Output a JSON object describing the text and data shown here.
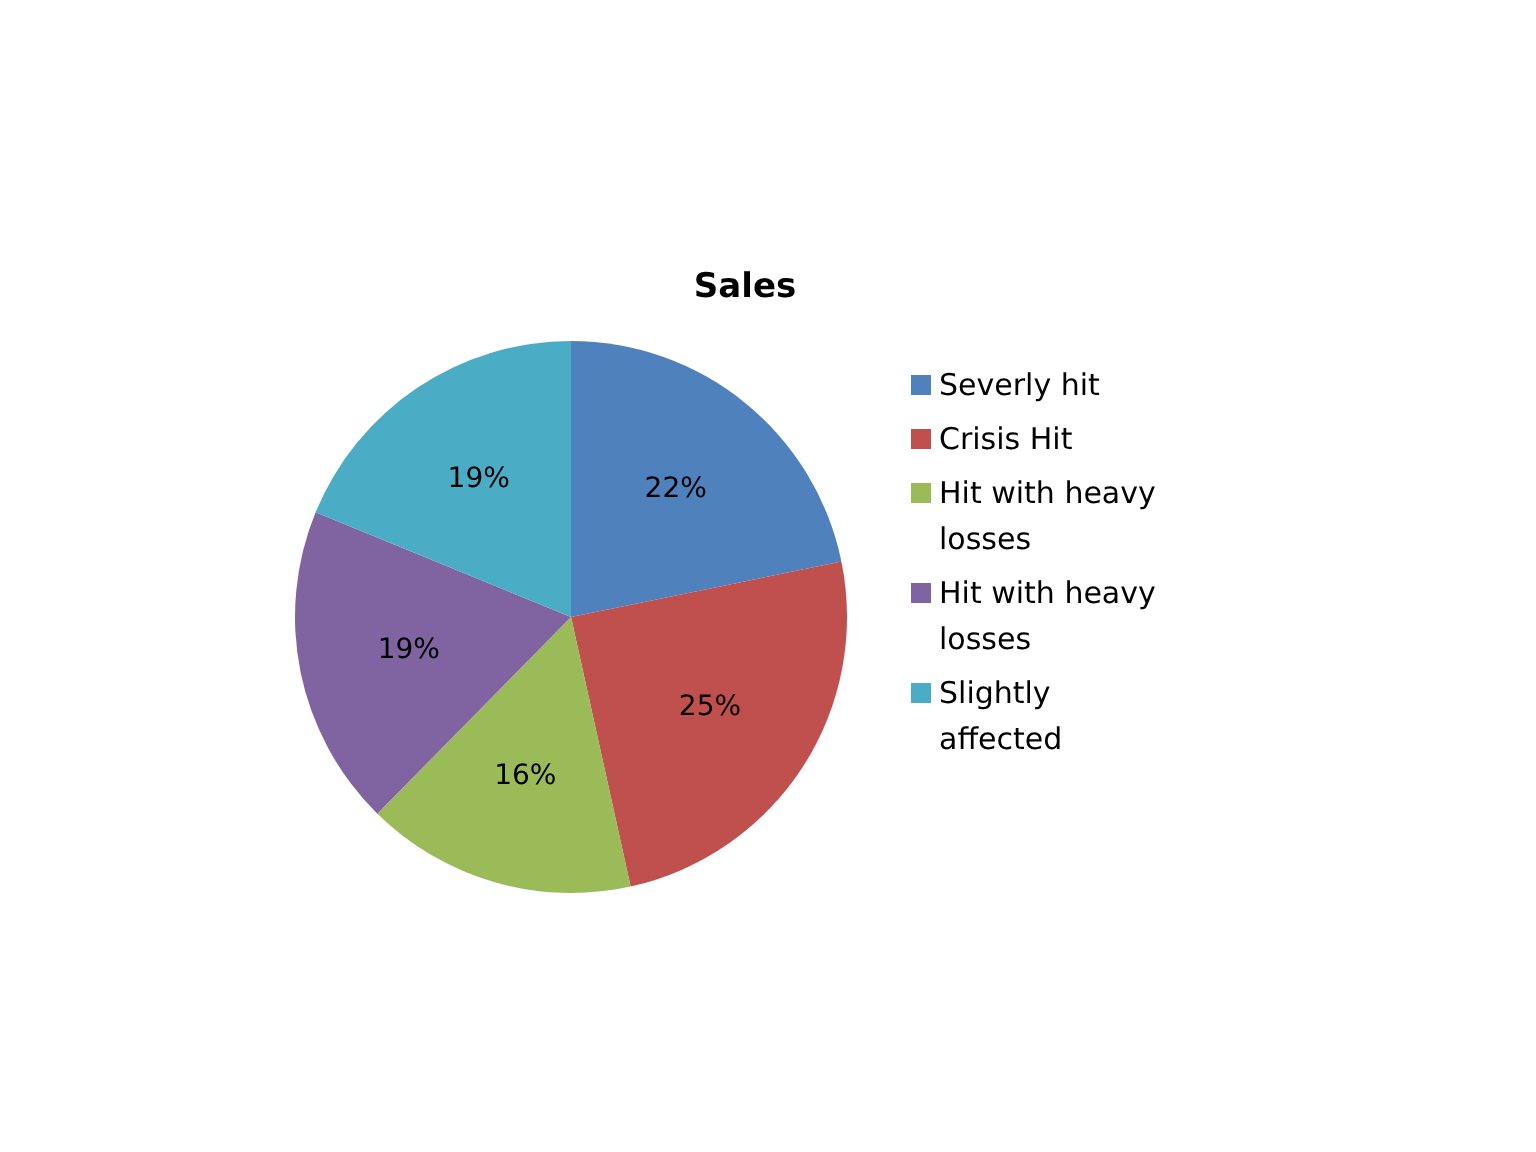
{
  "chart_data": {
    "type": "pie",
    "title": "Sales",
    "categories": [
      "Severly hit",
      "Crisis Hit",
      "Hit with heavy losses",
      "Hit with heavy losses",
      "Slightly affected"
    ],
    "values": [
      22,
      25,
      16,
      19,
      19
    ],
    "value_labels": [
      "22%",
      "25%",
      "16%",
      "19%",
      "19%"
    ],
    "colors": [
      "#4f81bd",
      "#c0504d",
      "#9bbb59",
      "#8064a2",
      "#4bacc6"
    ],
    "legend": "right"
  }
}
